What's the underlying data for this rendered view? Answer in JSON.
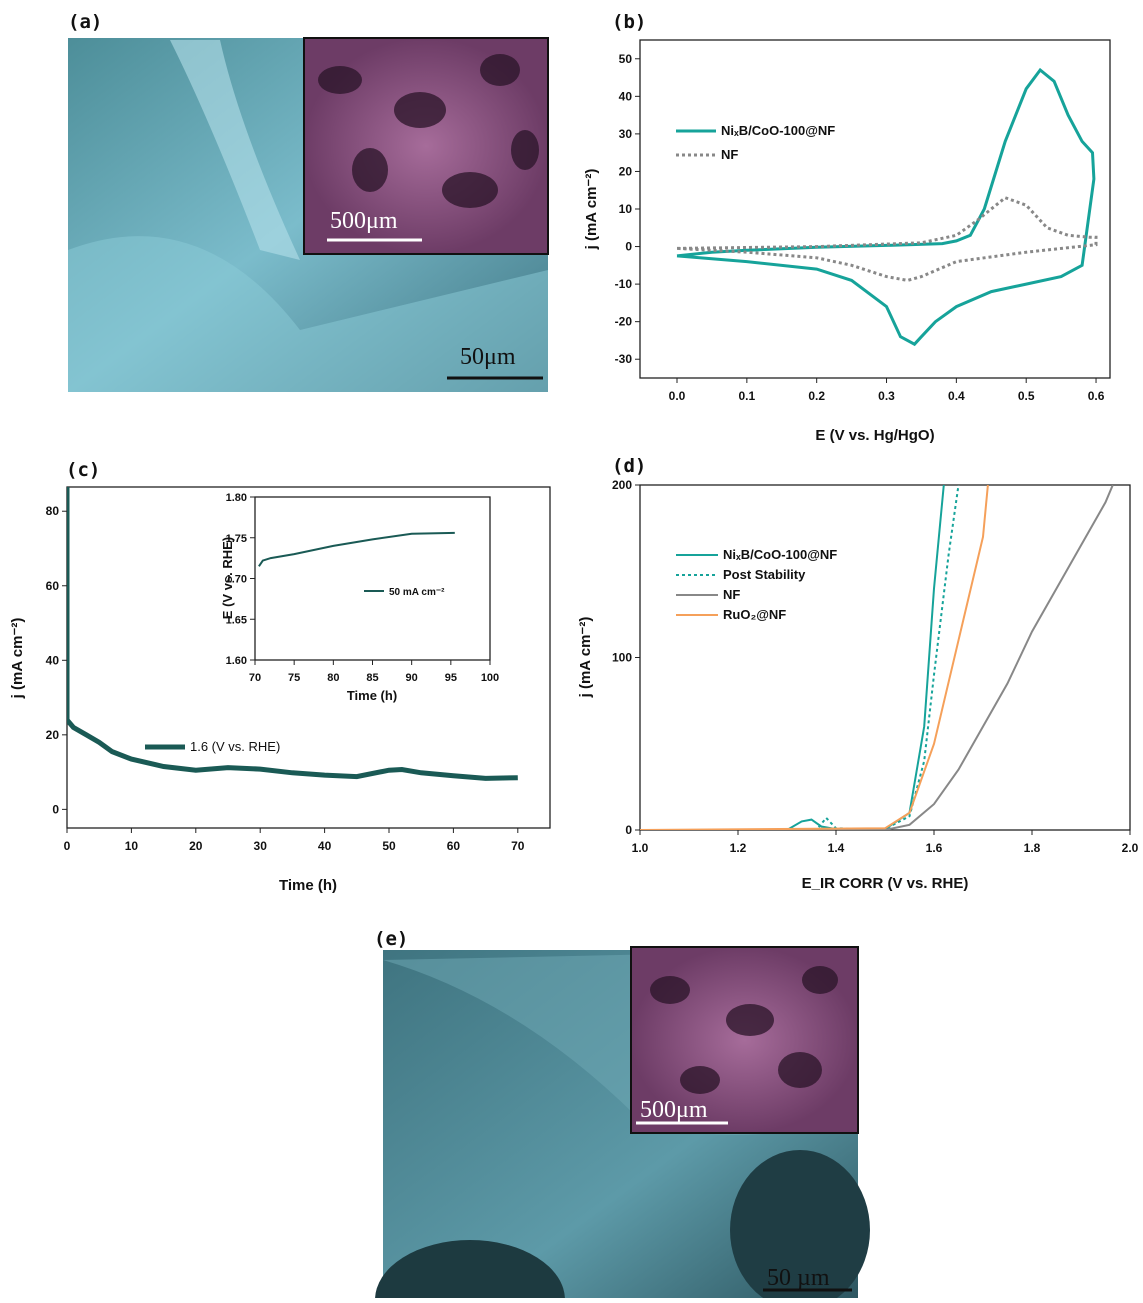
{
  "images": [
    {
      "label": "(a)",
      "scale_bar": "50μm",
      "inset_scale_bar": "500μm"
    },
    {
      "label": "(e)",
      "scale_bar": "50 µm",
      "inset_scale_bar": "500μm"
    }
  ],
  "chart_data": [
    {
      "type": "line",
      "panel_label": "(b)",
      "x_label": "E (V vs. Hg/HgO)",
      "y_label": "j (mA cm⁻²)",
      "xlim": [
        -0.053,
        0.62
      ],
      "ylim": [
        -35,
        55
      ],
      "xticks": [
        {
          "value": 0,
          "label": "0.0"
        },
        0.1,
        0.2,
        0.3,
        0.4,
        0.5,
        0.6
      ],
      "yticks": [
        -30,
        -20,
        -10,
        0,
        10,
        20,
        30,
        40,
        50
      ],
      "series": [
        {
          "name": "NiₓB/CoO-100@NF",
          "color": "#16a39a",
          "style": "solid",
          "x": [
            0,
            0.05,
            0.1,
            0.2,
            0.3,
            0.38,
            0.4,
            0.42,
            0.44,
            0.47,
            0.5,
            0.52,
            0.54,
            0.56,
            0.58,
            0.595,
            0.597,
            0.58,
            0.55,
            0.5,
            0.45,
            0.4,
            0.37,
            0.35,
            0.34,
            0.32,
            0.3,
            0.25,
            0.2,
            0.1,
            0
          ],
          "values": [
            -2.5,
            -1.5,
            -1,
            -0.2,
            0.3,
            0.8,
            1.5,
            3,
            10,
            28,
            42,
            47,
            44,
            35,
            28,
            25,
            18,
            -5,
            -8,
            -10,
            -12,
            -16,
            -20,
            -24,
            -26,
            -24,
            -16,
            -9,
            -6,
            -4,
            -2.5
          ]
        },
        {
          "name": "NF",
          "color": "#888888",
          "style": "dotted",
          "x": [
            0,
            0.2,
            0.35,
            0.4,
            0.43,
            0.47,
            0.5,
            0.53,
            0.56,
            0.59,
            0.6,
            0.6,
            0.5,
            0.4,
            0.35,
            0.33,
            0.3,
            0.25,
            0.2,
            0.1,
            0
          ],
          "values": [
            -0.5,
            0,
            1,
            3,
            7,
            13,
            11,
            5,
            3,
            2.5,
            2.5,
            0.5,
            -1.5,
            -4,
            -8,
            -9,
            -8,
            -5,
            -3,
            -1.5,
            -0.5
          ]
        }
      ]
    },
    {
      "type": "line",
      "panel_label": "(c)",
      "x_label": "Time (h)",
      "y_label": "j (mA cm⁻²)",
      "xlim": [
        0,
        75
      ],
      "ylim": [
        -5,
        86.5
      ],
      "xticks": [
        0,
        10,
        20,
        30,
        40,
        50,
        60,
        70
      ],
      "yticks": [
        0,
        20,
        40,
        60,
        80
      ],
      "series": [
        {
          "name": "1.6 (V vs. RHE)",
          "color": "#1a5a55",
          "style": "solid",
          "x": [
            0,
            0,
            1,
            3,
            5,
            7,
            10,
            15,
            20,
            25,
            30,
            35,
            40,
            45,
            50,
            52,
            55,
            60,
            65,
            70
          ],
          "values": [
            86.5,
            24,
            22,
            20,
            18,
            15.5,
            13.5,
            11.5,
            10.5,
            11.2,
            10.8,
            9.8,
            9.2,
            8.8,
            10.5,
            10.7,
            9.8,
            9,
            8.3,
            8.5
          ]
        }
      ]
    },
    {
      "type": "line",
      "x_label": "Time (h)",
      "y_label": "E (V vs. RHE)",
      "xlim": [
        70,
        100
      ],
      "ylim": [
        1.6,
        1.8
      ],
      "xticks": [
        70,
        75,
        80,
        85,
        90,
        95,
        100
      ],
      "yticks": [
        {
          "value": 1.6,
          "label": "1.60"
        },
        1.65,
        {
          "value": 1.7,
          "label": "1.70"
        },
        1.75,
        {
          "value": 1.8,
          "label": "1.80"
        }
      ],
      "series": [
        {
          "name": "50 mA cm⁻²",
          "color": "#1a5a55",
          "style": "solid",
          "x": [
            70.5,
            71,
            72,
            75,
            80,
            85,
            90,
            95.5
          ],
          "values": [
            1.715,
            1.722,
            1.725,
            1.73,
            1.74,
            1.748,
            1.755,
            1.756
          ]
        }
      ]
    },
    {
      "type": "line",
      "panel_label": "(d)",
      "x_label": "E_IR CORR (V vs. RHE)",
      "y_label": "j (mA cm⁻²)",
      "xlim": [
        1.0,
        2.0
      ],
      "ylim": [
        0,
        200
      ],
      "xticks": [
        {
          "value": 1,
          "label": "1.0"
        },
        1.2,
        1.4,
        1.6,
        1.8,
        {
          "value": 2,
          "label": "2.0"
        }
      ],
      "yticks": [
        0,
        100,
        200
      ],
      "series": [
        {
          "name": "NiₓB/CoO-100@NF",
          "color": "#16a39a",
          "style": "solid",
          "x": [
            1,
            1.3,
            1.33,
            1.35,
            1.37,
            1.4,
            1.5,
            1.55,
            1.58,
            1.6,
            1.62
          ],
          "values": [
            0,
            0,
            5,
            6,
            2,
            0.5,
            0.5,
            10,
            60,
            140,
            200
          ]
        },
        {
          "name": "Post Stability",
          "color": "#16a39a",
          "style": "dotted",
          "x": [
            1,
            1.36,
            1.38,
            1.4,
            1.5,
            1.55,
            1.58,
            1.6,
            1.63,
            1.65
          ],
          "values": [
            0,
            0,
            7,
            1,
            0.5,
            8,
            40,
            90,
            160,
            200
          ]
        },
        {
          "name": "NF",
          "color": "#888888",
          "style": "solid",
          "x": [
            1,
            1.5,
            1.55,
            1.6,
            1.65,
            1.7,
            1.75,
            1.8,
            1.85,
            1.9,
            1.95,
            1.965
          ],
          "values": [
            0,
            0,
            3,
            15,
            35,
            60,
            85,
            115,
            140,
            165,
            190,
            200
          ]
        },
        {
          "name": "RuO₂@NF",
          "color": "#f5a05a",
          "style": "solid",
          "x": [
            1,
            1.5,
            1.55,
            1.6,
            1.65,
            1.7,
            1.71
          ],
          "values": [
            0,
            1,
            10,
            50,
            110,
            170,
            200
          ]
        }
      ]
    }
  ]
}
